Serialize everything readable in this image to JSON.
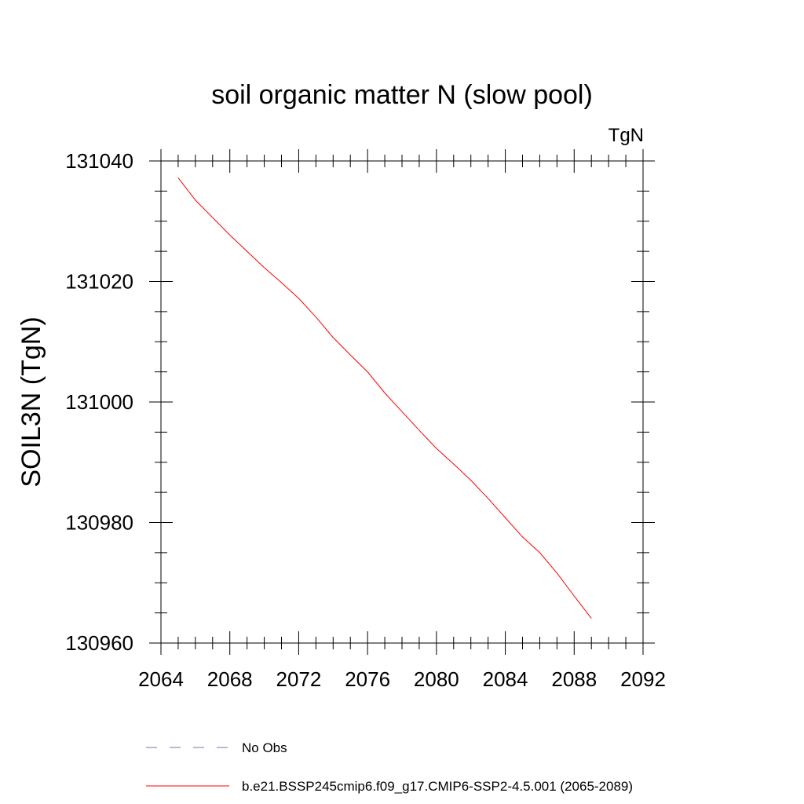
{
  "chart_data": {
    "type": "line",
    "title": "soil organic matter N (slow pool)",
    "units_label": "TgN",
    "xlabel": "",
    "ylabel": "SOIL3N  (TgN)",
    "xlim": [
      2064,
      2092
    ],
    "ylim": [
      130960,
      131040
    ],
    "x_ticks": [
      2064,
      2068,
      2072,
      2076,
      2080,
      2084,
      2088,
      2092
    ],
    "y_ticks": [
      130960,
      130980,
      131000,
      131020,
      131040
    ],
    "x_tick_labels": [
      "2064",
      "2068",
      "2072",
      "2076",
      "2080",
      "2084",
      "2088",
      "2092"
    ],
    "y_tick_labels": [
      "130960",
      "130980",
      "131000",
      "131020",
      "131040"
    ],
    "x_minor_step": 1,
    "y_minor_step": 5,
    "grid": false,
    "legend_position": "bottom",
    "series": [
      {
        "name": "No Obs",
        "color": "#7b6fb0",
        "dash": "dashed",
        "x": [],
        "y": []
      },
      {
        "name": "b.e21.BSSP245cmip6.f09_g17.CMIP6-SSP2-4.5.001 (2065-2089)",
        "color": "#ff0000",
        "dash": "solid",
        "x": [
          2065,
          2066,
          2067,
          2068,
          2069,
          2070,
          2071,
          2072,
          2073,
          2074,
          2075,
          2076,
          2077,
          2078,
          2079,
          2080,
          2081,
          2082,
          2083,
          2084,
          2085,
          2086,
          2087,
          2088,
          2089
        ],
        "y": [
          131037.2,
          131033.5,
          131030.6,
          131027.7,
          131025.0,
          131022.3,
          131019.8,
          131017.2,
          131014.1,
          131010.7,
          131007.8,
          131005.0,
          131001.5,
          130998.4,
          130995.3,
          130992.3,
          130989.7,
          130987.0,
          130984.0,
          130980.8,
          130977.6,
          130975.0,
          130971.6,
          130967.8,
          130964.1
        ]
      }
    ]
  }
}
